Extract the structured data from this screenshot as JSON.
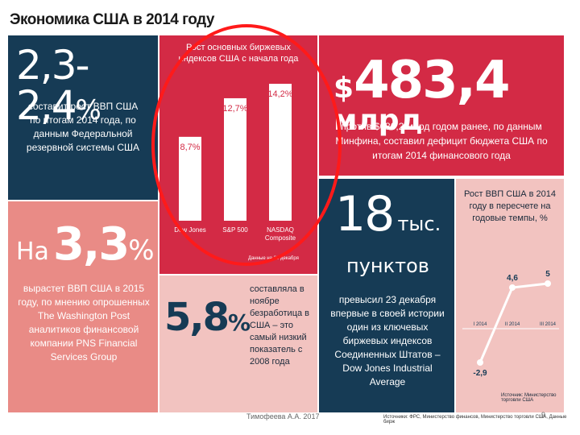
{
  "title": "Экономика США в 2014 году",
  "gdp_growth": {
    "value": "2,3-2,4",
    "unit": "%",
    "text": "составит рост ВВП США по итогам 2014 года, по данным Федеральной резервной системы США"
  },
  "forecast": {
    "prefix": "На",
    "value": "3,3",
    "unit": "%",
    "text": "вырастет ВВП США в 2015 году, по мнению опрошенных The Washington Post аналитиков финансовой компании PNS Financial Services Group"
  },
  "deficit": {
    "prefix": "$",
    "value": "483,4",
    "unit": "млрд",
    "text": "против $680,2 млрд годом ранее, по данным Минфина, составил дефицит бюджета США по итогам 2014 финансового года"
  },
  "unemployment": {
    "value": "5,8",
    "unit": "%",
    "text": "составляла в ноябре безработица в США – это самый низкий показатель с 2008 года"
  },
  "dow": {
    "value": "18",
    "unit": "тыс.",
    "unit2": "пунктов",
    "text": "превысил 23 декабря впервые в своей истории один из ключевых биржевых индексов Соединенных Штатов – Dow Jones Industrial Average"
  },
  "chart_data": [
    {
      "type": "bar",
      "title": "Рост основных биржевых индексов США с начала года",
      "categories": [
        "Dow Jones",
        "S&P 500",
        "NASDAQ Composite"
      ],
      "value_labels": [
        "8,7%",
        "12,7%",
        "14,2%"
      ],
      "values": [
        8.7,
        12.7,
        14.2
      ],
      "ylim": [
        0,
        14.2
      ],
      "source_note": "Данные на 23 декабря"
    },
    {
      "type": "line",
      "title": "Рост ВВП США в 2014 году в пересчете на годовые темпы, %",
      "categories": [
        "I 2014",
        "II 2014",
        "III 2014"
      ],
      "value_labels": [
        "-2,9",
        "4,6",
        "5"
      ],
      "values": [
        -2.9,
        4.6,
        5.0
      ],
      "ylim": [
        -2.9,
        5.0
      ],
      "source_note": "Источник: Министерство торговли США"
    }
  ],
  "footer": {
    "author": "Тимофеева А.А. 2017",
    "page": "9",
    "sources": "Источники: ФРС, Министерство финансов, Министерство торговли США, Данные бирж"
  },
  "colors": {
    "navy": "#163b55",
    "red": "#d32a45",
    "pink": "#e98b86",
    "annotation": "#ff1a1a"
  }
}
